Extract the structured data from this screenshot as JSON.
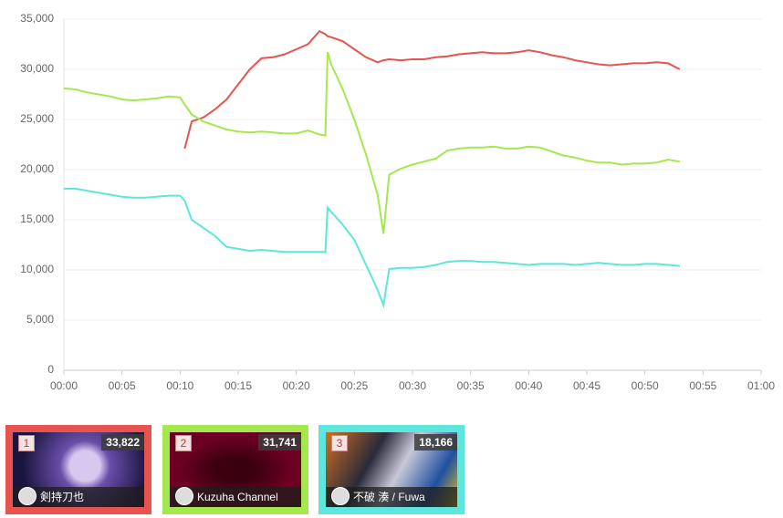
{
  "chart_data": {
    "type": "line",
    "x": [
      0,
      1,
      2,
      3,
      4,
      5,
      6,
      7,
      8,
      9,
      10,
      10.4,
      11,
      12,
      13,
      14,
      15,
      16,
      17,
      18,
      19,
      20,
      21,
      22,
      22.5,
      22.7,
      23,
      24,
      25,
      26,
      27,
      27.5,
      28,
      29,
      30,
      31,
      32,
      33,
      34,
      35,
      36,
      37,
      38,
      39,
      40,
      41,
      42,
      43,
      44,
      45,
      46,
      47,
      48,
      49,
      50,
      51,
      52,
      53
    ],
    "series": [
      {
        "color": "#e8524f",
        "values": [
          null,
          null,
          null,
          null,
          null,
          null,
          null,
          null,
          null,
          null,
          null,
          22100,
          24800,
          25200,
          26000,
          27000,
          28500,
          30000,
          31100,
          31200,
          31500,
          32000,
          32500,
          33800,
          33500,
          33300,
          33200,
          32800,
          32000,
          31200,
          30700,
          30900,
          31000,
          30900,
          31000,
          31000,
          31200,
          31300,
          31500,
          31600,
          31700,
          31600,
          31600,
          31700,
          31900,
          31700,
          31400,
          31200,
          30900,
          30700,
          30500,
          30400,
          30500,
          30600,
          30600,
          30700,
          30600,
          30000
        ]
      },
      {
        "color": "#a4e84e",
        "values": [
          28100,
          28000,
          27700,
          27500,
          27300,
          27000,
          26900,
          27000,
          27100,
          27300,
          27200,
          26500,
          25500,
          24800,
          24400,
          24000,
          23800,
          23700,
          23800,
          23700,
          23600,
          23600,
          23900,
          23500,
          23400,
          31700,
          30500,
          28000,
          25000,
          21500,
          17500,
          13600,
          19500,
          20100,
          20500,
          20800,
          21100,
          21900,
          22100,
          22200,
          22200,
          22300,
          22100,
          22100,
          22300,
          22200,
          21800,
          21400,
          21200,
          20900,
          20700,
          20700,
          20500,
          20600,
          20600,
          20700,
          21000,
          20800
        ]
      },
      {
        "color": "#5ce6dc",
        "values": [
          18100,
          18100,
          17900,
          17700,
          17500,
          17300,
          17200,
          17200,
          17300,
          17400,
          17400,
          16900,
          15000,
          14200,
          13400,
          12300,
          12100,
          11900,
          12000,
          11900,
          11800,
          11800,
          11800,
          11800,
          11800,
          16200,
          15800,
          14500,
          13000,
          10500,
          8000,
          6500,
          10100,
          10200,
          10200,
          10300,
          10500,
          10800,
          10900,
          10900,
          10800,
          10800,
          10700,
          10600,
          10500,
          10600,
          10600,
          10600,
          10500,
          10600,
          10700,
          10600,
          10500,
          10500,
          10600,
          10600,
          10500,
          10400
        ]
      }
    ],
    "xlim": [
      0,
      60
    ],
    "xticks": [
      {
        "value": 0,
        "label": "00:00"
      },
      {
        "value": 5,
        "label": "00:05"
      },
      {
        "value": 10,
        "label": "00:10"
      },
      {
        "value": 15,
        "label": "00:15"
      },
      {
        "value": 20,
        "label": "00:20"
      },
      {
        "value": 25,
        "label": "00:25"
      },
      {
        "value": 30,
        "label": "00:30"
      },
      {
        "value": 35,
        "label": "00:35"
      },
      {
        "value": 40,
        "label": "00:40"
      },
      {
        "value": 45,
        "label": "00:45"
      },
      {
        "value": 50,
        "label": "00:50"
      },
      {
        "value": 55,
        "label": "00:55"
      },
      {
        "value": 60,
        "label": "01:00"
      }
    ],
    "ylim": [
      0,
      35000
    ],
    "yticks": [
      0,
      {
        "value": 5000,
        "label": "5,000"
      },
      {
        "value": 10000,
        "label": "10,000"
      },
      {
        "value": 15000,
        "label": "15,000"
      },
      {
        "value": 20000,
        "label": "20,000"
      },
      {
        "value": 25000,
        "label": "25,000"
      },
      {
        "value": 30000,
        "label": "30,000"
      },
      {
        "value": 35000,
        "label": "35,000"
      }
    ],
    "grid": true
  },
  "cards": [
    {
      "rank": "1",
      "count": "33,822",
      "name": "剣持刀也",
      "color": "#e8524f"
    },
    {
      "rank": "2",
      "count": "31,741",
      "name": "Kuzuha Channel",
      "color": "#a4e84e"
    },
    {
      "rank": "3",
      "count": "18,166",
      "name": "不破 湊 / Fuwa",
      "color": "#5ce6dc"
    }
  ]
}
